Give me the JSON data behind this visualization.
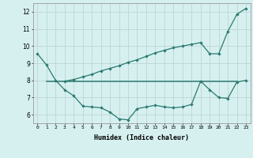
{
  "xlabel": "Humidex (Indice chaleur)",
  "bg_color": "#d6f0f0",
  "grid_color": "#c0d8d8",
  "line_color": "#2a7a70",
  "xlim": [
    -0.5,
    23.5
  ],
  "ylim": [
    5.5,
    12.5
  ],
  "line1_x": [
    0,
    1,
    2,
    3,
    4,
    5,
    6,
    7,
    8,
    9,
    10,
    11,
    12,
    13,
    14,
    15,
    16,
    17,
    18,
    19,
    20,
    21,
    22,
    23
  ],
  "line1_y": [
    9.55,
    8.9,
    8.0,
    7.45,
    7.1,
    6.5,
    6.45,
    6.4,
    6.15,
    5.75,
    5.7,
    6.35,
    6.45,
    6.55,
    6.45,
    6.4,
    6.45,
    6.6,
    7.95,
    7.45,
    7.0,
    6.95,
    7.9,
    8.0
  ],
  "line2_x": [
    1,
    22
  ],
  "line2_y": [
    7.95,
    7.95
  ],
  "line3_x": [
    3,
    4,
    5,
    6,
    7,
    8,
    9,
    10,
    11,
    12,
    13,
    14,
    15,
    16,
    17,
    18,
    19,
    20,
    21,
    22,
    23
  ],
  "line3_y": [
    7.95,
    8.05,
    8.2,
    8.35,
    8.55,
    8.7,
    8.85,
    9.05,
    9.2,
    9.4,
    9.6,
    9.75,
    9.9,
    10.0,
    10.1,
    10.2,
    9.55,
    9.55,
    10.85,
    11.85,
    12.2
  ],
  "yticks": [
    6,
    7,
    8,
    9,
    10,
    11,
    12
  ],
  "xticks": [
    0,
    1,
    2,
    3,
    4,
    5,
    6,
    7,
    8,
    9,
    10,
    11,
    12,
    13,
    14,
    15,
    16,
    17,
    18,
    19,
    20,
    21,
    22,
    23
  ]
}
